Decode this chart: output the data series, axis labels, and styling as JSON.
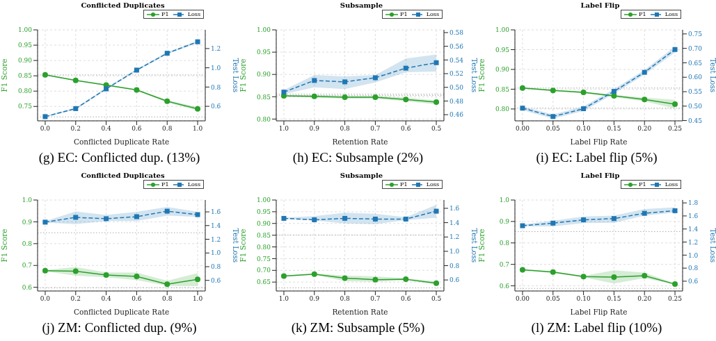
{
  "chart_data": [
    {
      "type": "line",
      "title": "Conflicted Duplicates",
      "xlabel": "Conflicted Duplicate Rate",
      "ylabel": "F1 Score",
      "y2label": "Test Loss",
      "annotations": [
        "(g) EC: Conflicted dup. (13%)"
      ],
      "x": [
        0,
        0.2,
        0.4,
        0.6,
        0.8,
        1.0
      ],
      "xlim": [
        -0.05,
        1.05
      ],
      "xticks": [
        {
          "value": 0,
          "label": "0.0"
        },
        0.2,
        0.4,
        0.6,
        0.8,
        {
          "value": 1,
          "label": "1.0"
        }
      ],
      "ylim": [
        0.703,
        1.0
      ],
      "yticks": [
        0.75,
        {
          "value": 0.8,
          "label": "0.80"
        },
        0.85,
        {
          "value": 0.9,
          "label": "0.90"
        },
        0.95,
        {
          "value": 1,
          "label": "1.00"
        }
      ],
      "y2lim": [
        0.449,
        1.394
      ],
      "y2ticks": [
        0.6,
        0.8,
        {
          "value": 1,
          "label": "1.0"
        },
        1.2
      ],
      "grid": true,
      "legend": "top right",
      "ref_lines": [
        {
          "axis": "y",
          "value": 0.853,
          "color": "#aaaaaa",
          "line_style": "dotted"
        },
        {
          "axis": "y2",
          "value": 0.49,
          "color": "#aaaaaa",
          "line_style": "dotted"
        }
      ],
      "series": [
        {
          "name": "F1",
          "color": "#2ca02c",
          "marker": "circle",
          "line_style": "solid",
          "values": [
            0.853,
            0.835,
            0.82,
            0.804,
            0.767,
            0.742
          ],
          "lower": [
            0.851,
            0.833,
            0.818,
            0.802,
            0.763,
            0.737
          ],
          "upper": [
            0.855,
            0.837,
            0.822,
            0.806,
            0.771,
            0.748
          ]
        },
        {
          "name": "Loss",
          "color": "#1f77b4",
          "marker": "square",
          "line_style": "dashed",
          "axis": "y2",
          "values": [
            0.493,
            0.576,
            0.781,
            0.976,
            1.151,
            1.27
          ],
          "lower": [
            0.485,
            0.566,
            0.771,
            0.966,
            1.141,
            1.26
          ],
          "upper": [
            0.501,
            0.586,
            0.791,
            0.986,
            1.161,
            1.28
          ]
        }
      ]
    },
    {
      "type": "line",
      "title": "Subsample",
      "xlabel": "Retention Rate",
      "ylabel": "F1 Score",
      "y2label": "Test Loss",
      "annotations": [
        "(h) EC: Subsample (2%)"
      ],
      "x": [
        1.0,
        0.9,
        0.8,
        0.7,
        0.6,
        0.5
      ],
      "xlim": [
        1.025,
        0.475
      ],
      "xticks": [
        {
          "value": 1,
          "label": "1.0"
        },
        0.9,
        0.8,
        0.7,
        0.6,
        0.5
      ],
      "ylim": [
        0.796,
        1.0
      ],
      "yticks": [
        {
          "value": 0.8,
          "label": "0.80"
        },
        0.85,
        {
          "value": 0.9,
          "label": "0.90"
        },
        0.95,
        {
          "value": 1,
          "label": "1.00"
        }
      ],
      "y2lim": [
        0.451,
        0.584
      ],
      "y2ticks": [
        0.46,
        0.48,
        {
          "value": 0.5,
          "label": "0.50"
        },
        0.52,
        0.54,
        0.56,
        0.58
      ],
      "grid": true,
      "legend": "top right",
      "ref_lines": [
        {
          "axis": "y",
          "value": 0.853,
          "color": "#aaaaaa",
          "line_style": "dotted"
        },
        {
          "axis": "y2",
          "value": 0.49,
          "color": "#aaaaaa",
          "line_style": "dotted"
        }
      ],
      "series": [
        {
          "name": "F1",
          "color": "#2ca02c",
          "marker": "circle",
          "line_style": "solid",
          "values": [
            0.852,
            0.851,
            0.849,
            0.849,
            0.844,
            0.838
          ],
          "lower": [
            0.85,
            0.848,
            0.846,
            0.846,
            0.84,
            0.833
          ],
          "upper": [
            0.854,
            0.854,
            0.852,
            0.852,
            0.848,
            0.842
          ]
        },
        {
          "name": "Loss",
          "color": "#1f77b4",
          "marker": "square",
          "line_style": "dashed",
          "axis": "y2",
          "values": [
            0.493,
            0.51,
            0.508,
            0.514,
            0.528,
            0.536
          ],
          "lower": [
            0.49,
            0.5,
            0.4975,
            0.507,
            0.522,
            0.523
          ],
          "upper": [
            0.496,
            0.518,
            0.516,
            0.518,
            0.542,
            0.548
          ]
        }
      ]
    },
    {
      "type": "line",
      "title": "Label Flip",
      "xlabel": "Label Flip Rate",
      "ylabel": "F1 Score",
      "y2label": "Test Loss",
      "annotations": [
        "(i) EC: Label flip (5%)"
      ],
      "x": [
        0,
        0.05,
        0.1,
        0.15,
        0.2,
        0.25
      ],
      "xlim": [
        -0.0125,
        0.2625
      ],
      "xticks": [
        {
          "value": 0,
          "label": "0.00"
        },
        0.05,
        {
          "value": 0.1,
          "label": "0.10"
        },
        0.15,
        {
          "value": 0.2,
          "label": "0.20"
        },
        0.25
      ],
      "ylim": [
        0.77,
        1.0
      ],
      "yticks": [
        {
          "value": 0.8,
          "label": "0.80"
        },
        0.85,
        {
          "value": 0.9,
          "label": "0.90"
        },
        0.95,
        {
          "value": 1,
          "label": "1.00"
        }
      ],
      "y2lim": [
        0.449,
        0.764
      ],
      "y2ticks": [
        0.45,
        {
          "value": 0.5,
          "label": "0.50"
        },
        0.55,
        {
          "value": 0.6,
          "label": "0.60"
        },
        0.65,
        {
          "value": 0.7,
          "label": "0.70"
        },
        0.75
      ],
      "grid": true,
      "legend": "top right",
      "ref_lines": [
        {
          "axis": "y",
          "value": 0.853,
          "color": "#aaaaaa",
          "line_style": "dotted"
        },
        {
          "axis": "y2",
          "value": 0.493,
          "color": "#aaaaaa",
          "line_style": "dotted"
        }
      ],
      "series": [
        {
          "name": "F1",
          "color": "#2ca02c",
          "marker": "circle",
          "line_style": "solid",
          "values": [
            0.853,
            0.847,
            0.842,
            0.833,
            0.824,
            0.812
          ],
          "lower": [
            0.851,
            0.845,
            0.84,
            0.83,
            0.819,
            0.801
          ],
          "upper": [
            0.855,
            0.849,
            0.844,
            0.836,
            0.829,
            0.823
          ]
        },
        {
          "name": "Loss",
          "color": "#1f77b4",
          "marker": "square",
          "line_style": "dashed",
          "axis": "y2",
          "values": [
            0.493,
            0.464,
            0.491,
            0.551,
            0.617,
            0.696
          ],
          "lower": [
            0.486,
            0.457,
            0.483,
            0.543,
            0.609,
            0.686
          ],
          "upper": [
            0.499,
            0.471,
            0.499,
            0.559,
            0.625,
            0.706
          ]
        }
      ]
    },
    {
      "type": "line",
      "title": "Conflicted Duplicates",
      "xlabel": "Conflicted Duplicate Rate",
      "ylabel": "F1 Score",
      "y2label": "Test Loss",
      "annotations": [
        "(j) ZM: Conflicted dup. (9%)"
      ],
      "x": [
        0,
        0.2,
        0.4,
        0.6,
        0.8,
        1.0
      ],
      "xlim": [
        -0.05,
        1.05
      ],
      "xticks": [
        {
          "value": 0,
          "label": "0.0"
        },
        0.2,
        0.4,
        0.6,
        0.8,
        {
          "value": 1,
          "label": "1.0"
        }
      ],
      "ylim": [
        0.583,
        1.0
      ],
      "yticks": [
        0.6,
        0.7,
        0.8,
        0.9,
        {
          "value": 1,
          "label": "1.0"
        }
      ],
      "y2lim": [
        0.445,
        1.773
      ],
      "y2ticks": [
        0.6,
        0.8,
        {
          "value": 1,
          "label": "1.0"
        },
        1.2,
        1.4,
        1.6
      ],
      "grid": true,
      "legend": "top right",
      "ref_lines": [
        {
          "axis": "y",
          "value": 0.85,
          "color": "#aaaaaa",
          "line_style": "dotted"
        },
        {
          "axis": "y2",
          "value": 0.49,
          "color": "#aaaaaa",
          "line_style": "dotted"
        }
      ],
      "series": [
        {
          "name": "F1",
          "color": "#2ca02c",
          "marker": "circle",
          "line_style": "solid",
          "values": [
            0.676,
            0.674,
            0.656,
            0.65,
            0.614,
            0.636
          ],
          "lower": [
            0.673,
            0.653,
            0.646,
            0.633,
            0.607,
            0.605
          ],
          "upper": [
            0.679,
            0.693,
            0.668,
            0.667,
            0.63,
            0.665
          ]
        },
        {
          "name": "Loss",
          "color": "#1f77b4",
          "marker": "square",
          "line_style": "dashed",
          "axis": "y2",
          "values": [
            1.45,
            1.52,
            1.5,
            1.53,
            1.61,
            1.56
          ],
          "lower": [
            1.444,
            1.421,
            1.466,
            1.466,
            1.546,
            1.526
          ],
          "upper": [
            1.464,
            1.606,
            1.555,
            1.6,
            1.671,
            1.6
          ]
        }
      ]
    },
    {
      "type": "line",
      "title": "Subsample",
      "xlabel": "Retention Rate",
      "ylabel": "F1 Score",
      "y2label": "Test Loss",
      "annotations": [
        "(k) ZM: Subsample (5%)"
      ],
      "x": [
        1.0,
        0.9,
        0.8,
        0.7,
        0.6,
        0.5
      ],
      "xlim": [
        1.025,
        0.475
      ],
      "xticks": [
        {
          "value": 1,
          "label": "1.0"
        },
        0.9,
        0.8,
        0.7,
        0.6,
        0.5
      ],
      "ylim": [
        0.612,
        1.0
      ],
      "yticks": [
        0.65,
        {
          "value": 0.7,
          "label": "0.70"
        },
        0.75,
        {
          "value": 0.8,
          "label": "0.80"
        },
        0.85,
        {
          "value": 0.9,
          "label": "0.90"
        },
        0.95,
        {
          "value": 1,
          "label": "1.00"
        }
      ],
      "y2lim": [
        0.446,
        1.716
      ],
      "y2ticks": [
        0.6,
        0.8,
        {
          "value": 1,
          "label": "1.0"
        },
        1.2,
        1.4,
        1.6
      ],
      "grid": true,
      "legend": "top right",
      "ref_lines": [
        {
          "axis": "y",
          "value": 0.851,
          "color": "#aaaaaa",
          "line_style": "dotted"
        },
        {
          "axis": "y2",
          "value": 0.49,
          "color": "#aaaaaa",
          "line_style": "dotted"
        }
      ],
      "series": [
        {
          "name": "F1",
          "color": "#2ca02c",
          "marker": "circle",
          "line_style": "solid",
          "values": [
            0.676,
            0.684,
            0.667,
            0.66,
            0.662,
            0.645
          ],
          "lower": [
            0.673,
            0.681,
            0.654,
            0.651,
            0.658,
            0.64
          ],
          "upper": [
            0.679,
            0.687,
            0.678,
            0.674,
            0.666,
            0.653
          ]
        },
        {
          "name": "Loss",
          "color": "#1f77b4",
          "marker": "square",
          "line_style": "dashed",
          "axis": "y2",
          "values": [
            1.46,
            1.44,
            1.46,
            1.45,
            1.45,
            1.56
          ],
          "lower": [
            1.451,
            1.43,
            1.388,
            1.38,
            1.435,
            1.47
          ],
          "upper": [
            1.471,
            1.49,
            1.539,
            1.525,
            1.475,
            1.649
          ]
        }
      ]
    },
    {
      "type": "line",
      "title": "Label Flip",
      "xlabel": "Label Flip Rate",
      "ylabel": "F1 Score",
      "y2label": "Test Loss",
      "annotations": [
        "(l) ZM: Label flip (10%)"
      ],
      "x": [
        0,
        0.05,
        0.1,
        0.15,
        0.2,
        0.25
      ],
      "xlim": [
        -0.0125,
        0.2625
      ],
      "xticks": [
        {
          "value": 0,
          "label": "0.00"
        },
        0.05,
        {
          "value": 0.1,
          "label": "0.10"
        },
        0.15,
        {
          "value": 0.2,
          "label": "0.20"
        },
        0.25
      ],
      "ylim": [
        0.576,
        1.0
      ],
      "yticks": [
        0.6,
        0.7,
        0.8,
        0.9,
        {
          "value": 1,
          "label": "1.0"
        }
      ],
      "y2lim": [
        0.45,
        1.844
      ],
      "y2ticks": [
        0.6,
        0.8,
        {
          "value": 1,
          "label": "1.0"
        },
        1.2,
        1.4,
        1.6,
        1.8
      ],
      "grid": true,
      "legend": "top right",
      "ref_lines": [
        {
          "axis": "y",
          "value": 0.853,
          "color": "#aaaaaa",
          "line_style": "dotted"
        },
        {
          "axis": "y2",
          "value": 0.49,
          "color": "#aaaaaa",
          "line_style": "dotted"
        }
      ],
      "series": [
        {
          "name": "F1",
          "color": "#2ca02c",
          "marker": "circle",
          "line_style": "solid",
          "values": [
            0.675,
            0.664,
            0.643,
            0.641,
            0.647,
            0.608
          ],
          "lower": [
            0.672,
            0.66,
            0.64,
            0.611,
            0.636,
            0.605
          ],
          "upper": [
            0.678,
            0.668,
            0.646,
            0.672,
            0.662,
            0.611
          ]
        },
        {
          "name": "Loss",
          "color": "#1f77b4",
          "marker": "square",
          "line_style": "dashed",
          "axis": "y2",
          "values": [
            1.45,
            1.49,
            1.54,
            1.56,
            1.64,
            1.68
          ],
          "lower": [
            1.44,
            1.439,
            1.489,
            1.495,
            1.605,
            1.652
          ],
          "upper": [
            1.47,
            1.527,
            1.59,
            1.605,
            1.706,
            1.731
          ]
        }
      ]
    }
  ]
}
